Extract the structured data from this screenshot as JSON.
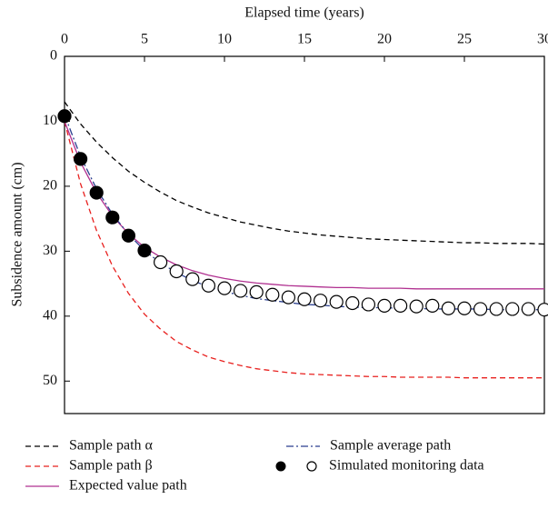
{
  "chart_data": {
    "type": "line",
    "x_label": "Elapsed time (years)",
    "y_label": "Subsidence amount (cm)",
    "x": [
      0,
      1,
      2,
      3,
      4,
      5,
      6,
      7,
      8,
      9,
      10,
      11,
      12,
      13,
      14,
      15,
      16,
      17,
      18,
      19,
      20,
      21,
      22,
      23,
      24,
      25,
      26,
      27,
      28,
      29,
      30
    ],
    "xlim": [
      0,
      30
    ],
    "xticks": [
      0,
      5,
      10,
      15,
      20,
      25,
      30
    ],
    "ylim": [
      0,
      55
    ],
    "yticks": [
      0,
      10,
      20,
      30,
      40,
      50
    ],
    "y_inverted": true,
    "x_axis_position": "top",
    "series": [
      {
        "name": "Sample path α",
        "color": "#000000",
        "style": "dashed",
        "values": [
          7.0,
          10.4,
          13.2,
          15.6,
          17.7,
          19.4,
          20.9,
          22.2,
          23.2,
          24.1,
          24.8,
          25.5,
          26.0,
          26.5,
          26.9,
          27.2,
          27.5,
          27.7,
          27.9,
          28.1,
          28.2,
          28.3,
          28.4,
          28.5,
          28.6,
          28.7,
          28.7,
          28.8,
          28.8,
          28.8,
          28.9
        ]
      },
      {
        "name": "Sample path β",
        "color": "#e8201e",
        "style": "dashed",
        "values": [
          10.0,
          19.6,
          26.8,
          32.3,
          36.5,
          39.7,
          42.0,
          43.9,
          45.2,
          46.3,
          47.0,
          47.6,
          48.1,
          48.4,
          48.7,
          48.9,
          49.0,
          49.1,
          49.2,
          49.3,
          49.3,
          49.4,
          49.4,
          49.4,
          49.4,
          49.5,
          49.5,
          49.5,
          49.5,
          49.5,
          49.5
        ]
      },
      {
        "name": "Expected value path",
        "color": "#b03090",
        "style": "solid",
        "values": [
          10.0,
          16.3,
          21.0,
          24.6,
          27.3,
          29.4,
          30.9,
          32.1,
          33.0,
          33.7,
          34.2,
          34.6,
          34.9,
          35.1,
          35.3,
          35.4,
          35.5,
          35.6,
          35.6,
          35.7,
          35.7,
          35.7,
          35.8,
          35.8,
          35.8,
          35.8,
          35.8,
          35.8,
          35.8,
          35.8,
          35.8
        ]
      },
      {
        "name": "Sample average path",
        "color": "#2a3f8f",
        "style": "dashdot",
        "values": [
          9.0,
          15.4,
          20.4,
          24.3,
          27.4,
          29.9,
          31.8,
          33.3,
          34.5,
          35.5,
          36.2,
          36.8,
          37.3,
          37.6,
          37.9,
          38.2,
          38.3,
          38.5,
          38.6,
          38.7,
          38.7,
          38.8,
          38.8,
          38.9,
          38.9,
          38.9,
          38.9,
          39.0,
          39.0,
          39.0,
          39.0
        ]
      },
      {
        "name": "Simulated monitoring data",
        "color": "#000000",
        "style": "points",
        "values": [
          9.2,
          15.8,
          21.0,
          24.8,
          27.6,
          29.9,
          31.7,
          33.1,
          34.3,
          35.3,
          35.7,
          36.1,
          36.3,
          36.7,
          37.1,
          37.4,
          37.6,
          37.8,
          38.0,
          38.2,
          38.4,
          38.4,
          38.5,
          38.4,
          38.8,
          38.8,
          38.9,
          38.9,
          38.9,
          38.9,
          39.0
        ],
        "fill": [
          "filled",
          "filled",
          "filled",
          "filled",
          "filled",
          "filled",
          "open",
          "open",
          "open",
          "open",
          "open",
          "open",
          "open",
          "open",
          "open",
          "open",
          "open",
          "open",
          "open",
          "open",
          "open",
          "open",
          "open",
          "open",
          "open",
          "open",
          "open",
          "open",
          "open",
          "open",
          "open"
        ]
      }
    ]
  }
}
